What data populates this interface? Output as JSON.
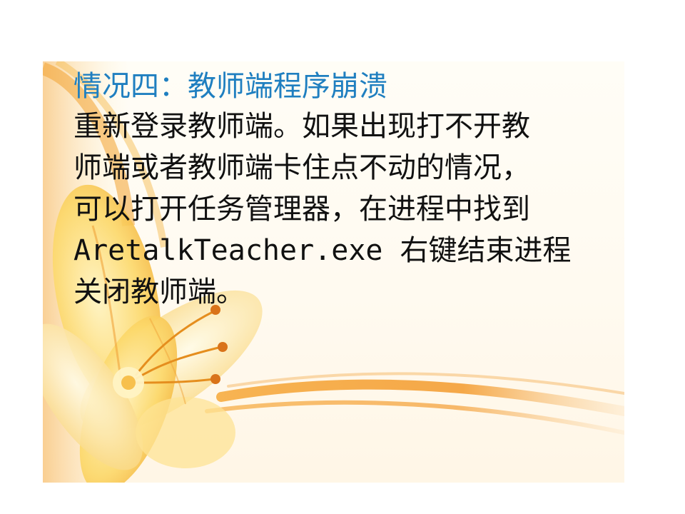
{
  "slide": {
    "title": "情况四：教师端程序崩溃",
    "body_lines": [
      "重新登录教师端。如果出现打不开教",
      "师端或者教师端卡住点不动的情况，",
      "可以打开任务管理器，在进程中找到",
      "AretalkTeacher.exe 右键结束进程",
      "关闭教师端。"
    ]
  },
  "colors": {
    "title": "#1f7fc0",
    "body": "#111111",
    "panel": "#fffaf0",
    "swoosh": "#f0a030",
    "petal": "#fbd56a"
  },
  "decoration": {
    "background_art": "yellow-lily-flower-with-orange-swoosh"
  }
}
